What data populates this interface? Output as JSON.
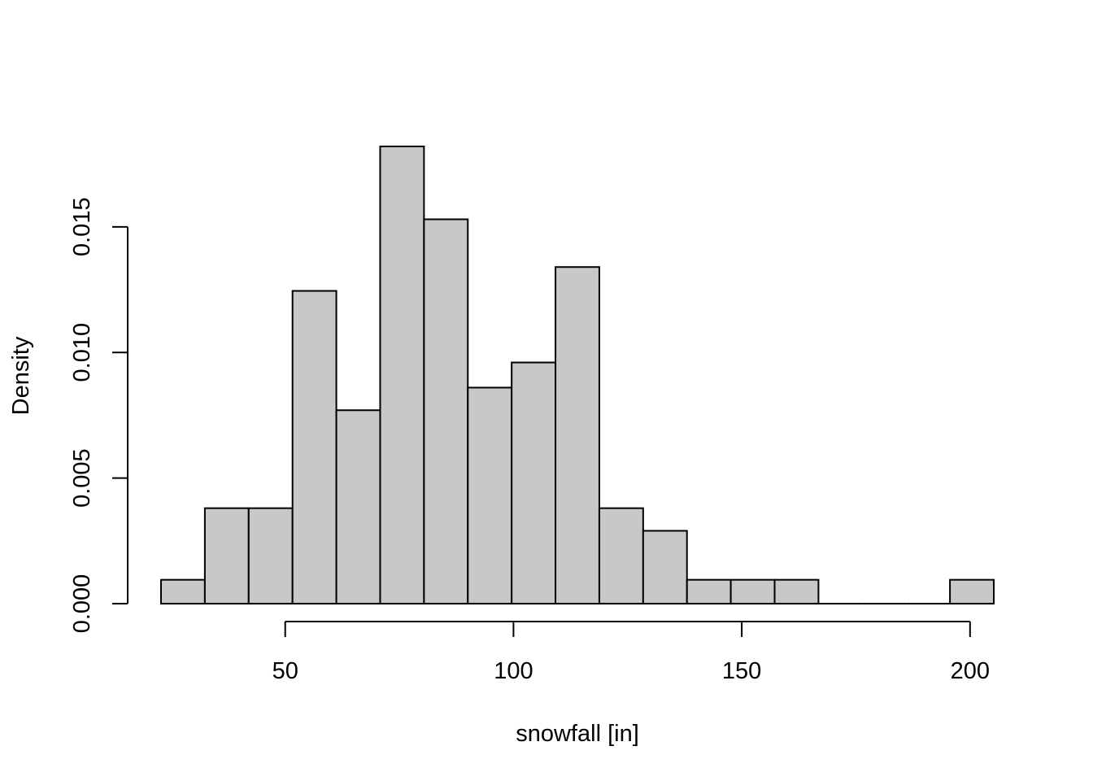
{
  "chart_data": {
    "type": "bar",
    "subtype": "histogram",
    "title": "",
    "xlabel": "snowfall [in]",
    "ylabel": "Density",
    "bar_fill": "#c8c8c8",
    "bar_stroke": "#000000",
    "bin_edges": [
      22.8,
      32.4,
      42.0,
      51.6,
      61.2,
      70.8,
      80.4,
      90.0,
      99.6,
      109.2,
      118.8,
      128.4,
      138.0,
      147.6,
      157.2,
      166.8,
      176.4,
      186.0,
      195.6,
      205.2
    ],
    "values": [
      0.00095,
      0.0038,
      0.0038,
      0.01245,
      0.0077,
      0.0182,
      0.0153,
      0.0086,
      0.0096,
      0.0134,
      0.0038,
      0.0029,
      0.00095,
      0.00095,
      0.00095,
      0,
      0,
      0,
      0.00095
    ],
    "x_ticks": [
      50,
      100,
      150,
      200
    ],
    "x_tick_labels": [
      "50",
      "100",
      "150",
      "200"
    ],
    "y_ticks": [
      0,
      0.005,
      0.01,
      0.015
    ],
    "y_tick_labels": [
      "0.000",
      "0.005",
      "0.010",
      "0.015"
    ],
    "xlim": [
      22.8,
      205.2
    ],
    "ylim": [
      0,
      0.0182
    ],
    "grid": false,
    "legend": "none"
  }
}
